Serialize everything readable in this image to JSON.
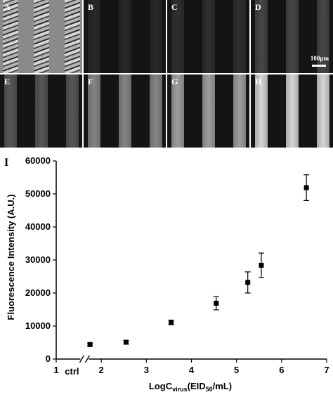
{
  "image_panels": [
    {
      "label": "A",
      "brightness": "brightfield"
    },
    {
      "label": "B",
      "brightness": 0.06
    },
    {
      "label": "C",
      "brightness": 0.09
    },
    {
      "label": "D",
      "brightness": 0.2
    },
    {
      "label": "E",
      "brightness": 0.28
    },
    {
      "label": "F",
      "brightness": 0.5
    },
    {
      "label": "G",
      "brightness": 0.62
    },
    {
      "label": "H",
      "brightness": 0.88
    }
  ],
  "scale_bar_label": "100μm",
  "chart_data": {
    "type": "scatter",
    "panel_label": "I",
    "ylabel": "Fluorescence Intensity (A.U.)",
    "xlabel_parts": {
      "main": "LogC",
      "sub": "virus",
      "paren_open": "(EID",
      "sub2": "50",
      "rest": "/mL)"
    },
    "xlim": [
      1,
      7
    ],
    "ylim": [
      0,
      60000
    ],
    "x_ticks": [
      1,
      2,
      3,
      4,
      5,
      6,
      7
    ],
    "y_ticks": [
      0,
      10000,
      20000,
      30000,
      40000,
      50000,
      60000
    ],
    "axis_break_label": "ctrl",
    "axis_break_at": 1.63,
    "points": [
      {
        "x": 1.75,
        "y": 4400,
        "err": 400
      },
      {
        "x": 2.55,
        "y": 5100,
        "err": 600
      },
      {
        "x": 3.55,
        "y": 11100,
        "err": 700
      },
      {
        "x": 4.55,
        "y": 16900,
        "err": 2000
      },
      {
        "x": 5.25,
        "y": 23200,
        "err": 3200
      },
      {
        "x": 5.55,
        "y": 28400,
        "err": 3700
      },
      {
        "x": 6.55,
        "y": 51900,
        "err": 3900
      }
    ],
    "colors": {
      "marker": "#000000",
      "axis": "#000000"
    }
  }
}
